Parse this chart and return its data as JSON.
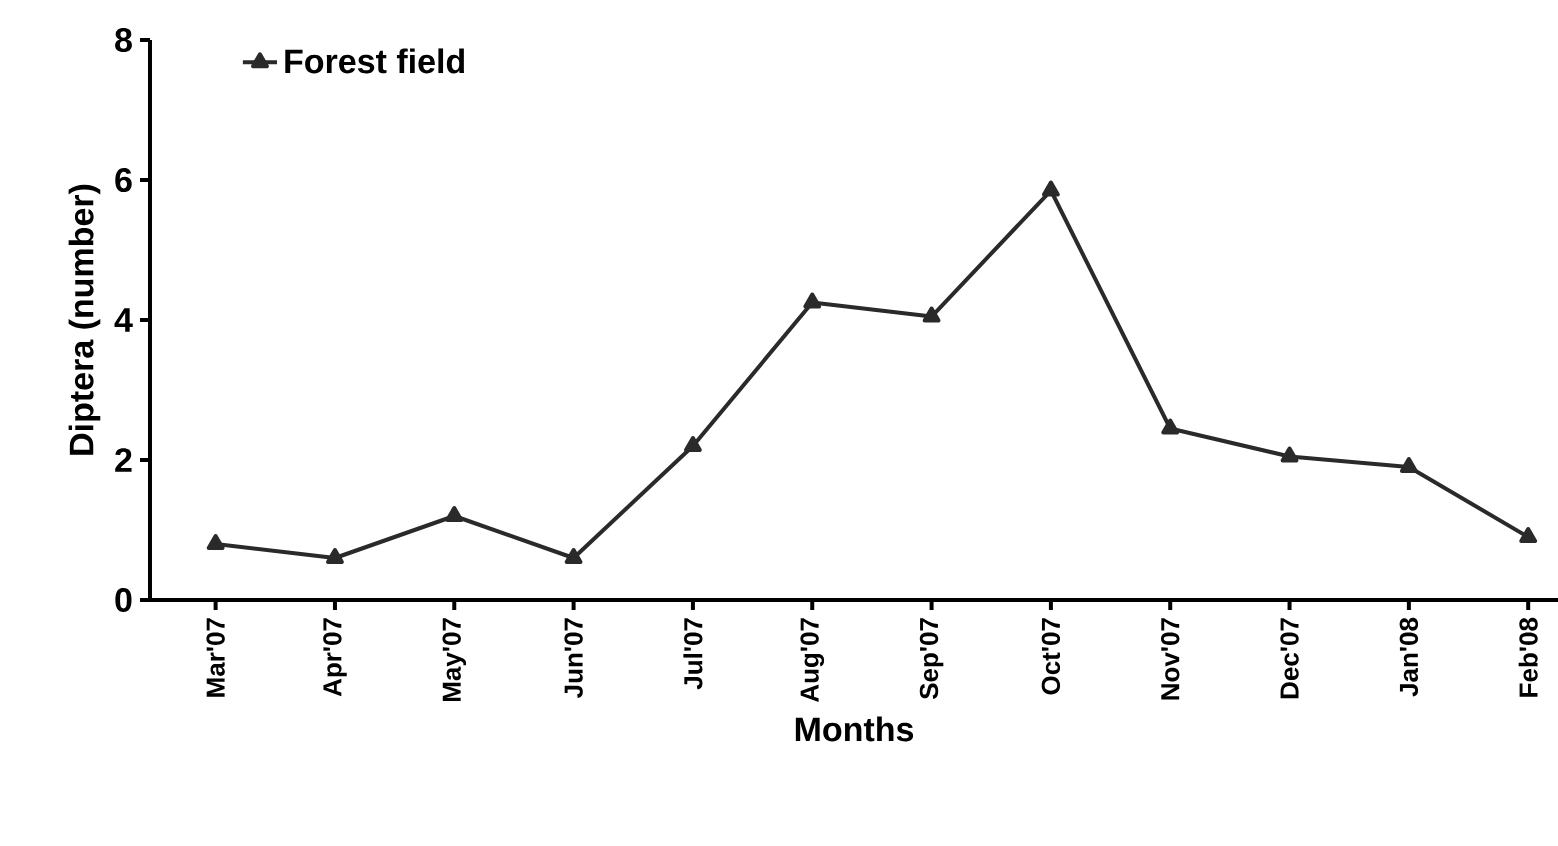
{
  "chart_data": {
    "type": "line",
    "xlabel": "Months",
    "ylabel": "Diptera (number)",
    "categories": [
      "Mar'07",
      "Apr'07",
      "May'07",
      "Jun'07",
      "Jul'07",
      "Aug'07",
      "Sep'07",
      "Oct'07",
      "Nov'07",
      "Dec'07",
      "Jan'08",
      "Feb'08"
    ],
    "series": [
      {
        "name": "Forest field",
        "color": "#2a2a2a",
        "values": [
          0.8,
          0.6,
          1.2,
          0.6,
          2.2,
          4.25,
          4.05,
          5.85,
          2.45,
          2.05,
          1.9,
          0.9
        ]
      }
    ],
    "ylim": [
      0,
      8
    ],
    "yticks": [
      0,
      2,
      4,
      6,
      8
    ],
    "marker": "triangle",
    "legend": "top left",
    "grid": false
  }
}
